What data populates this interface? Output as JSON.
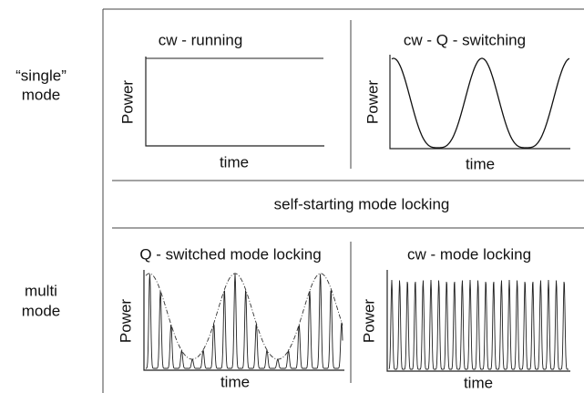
{
  "rows": [
    {
      "label": [
        "“single”",
        "mode"
      ]
    },
    {
      "label": [
        "multi",
        "mode"
      ]
    }
  ],
  "panels": [
    {
      "title": "cw - running",
      "y_label": "Power",
      "x_label": "time"
    },
    {
      "title": "cw - Q - switching",
      "y_label": "Power",
      "x_label": "time"
    },
    {
      "title": "Q - switched mode locking",
      "y_label": "Power",
      "x_label": "time"
    },
    {
      "title": "cw - mode  locking",
      "y_label": "Power",
      "x_label": "time"
    }
  ],
  "middle_label": "self-starting mode locking"
}
